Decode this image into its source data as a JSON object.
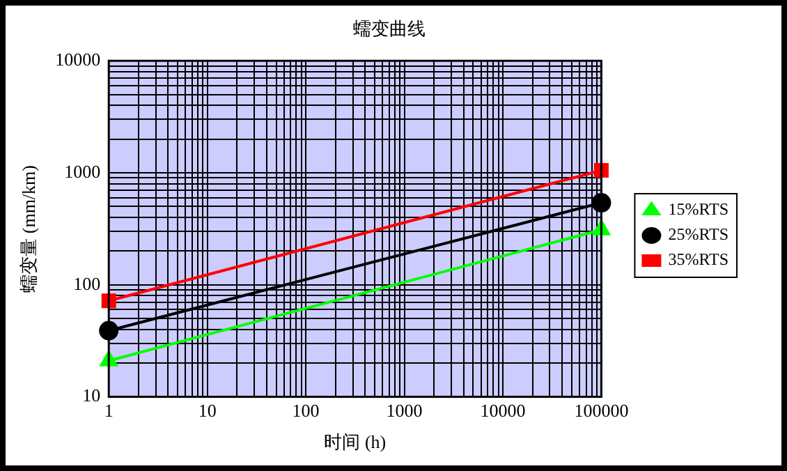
{
  "chart_data": {
    "type": "line",
    "title": "蠕变曲线",
    "xlabel": "时间 (h)",
    "ylabel": "蠕变量 (mm/km)",
    "log": "xy",
    "x": [
      1,
      100000
    ],
    "xlim": [
      1,
      100000
    ],
    "xticks": [
      1,
      10,
      100,
      1000,
      10000,
      100000
    ],
    "ylim": [
      10,
      10000
    ],
    "yticks": [
      10,
      100,
      1000,
      10000
    ],
    "grid": true,
    "legend": "right",
    "series": [
      {
        "name": "15%RTS",
        "color": "#00ff00",
        "marker": "triangle",
        "values": [
          21,
          310
        ]
      },
      {
        "name": "25%RTS",
        "color": "#000000",
        "marker": "circle",
        "values": [
          39,
          540
        ]
      },
      {
        "name": "35%RTS",
        "color": "#ff0000",
        "marker": "square",
        "values": [
          72,
          1050
        ]
      }
    ]
  }
}
